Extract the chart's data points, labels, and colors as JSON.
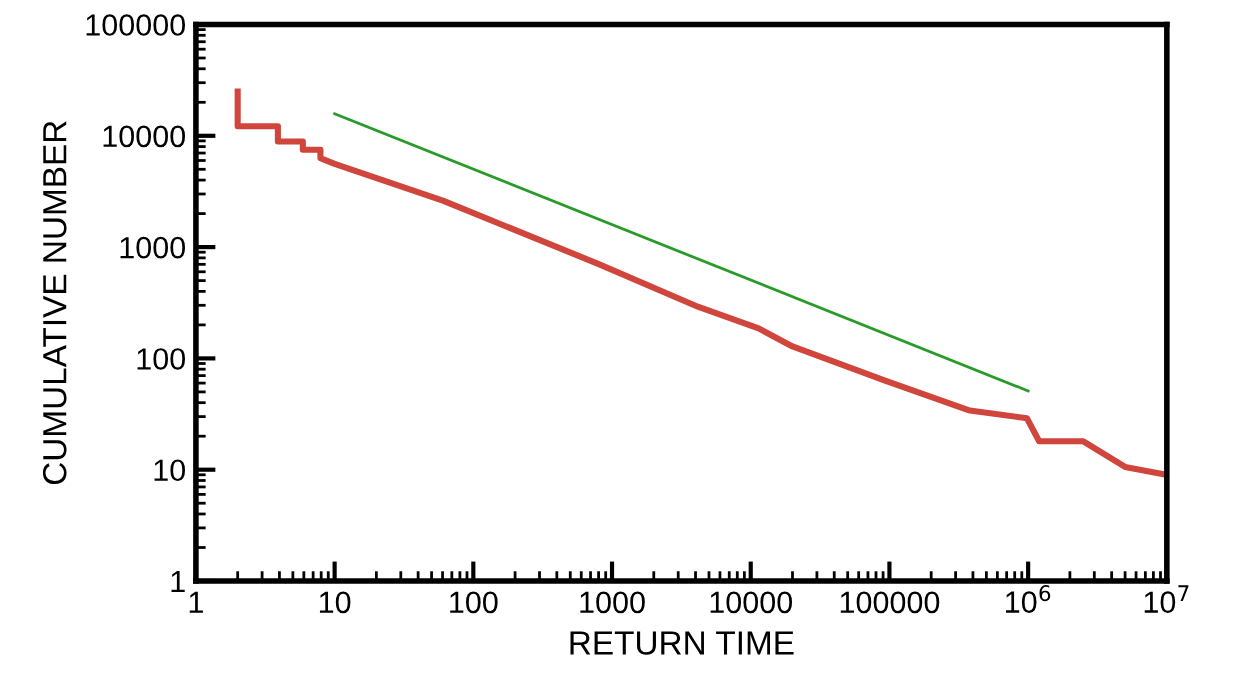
{
  "chart_data": {
    "type": "line",
    "xlabel": "RETURN TIME",
    "ylabel": "CUMULATIVE NUMBER",
    "log": "xy",
    "grid": false,
    "marker": "none",
    "line_style": "solid",
    "xlim": [
      1,
      10000000
    ],
    "ylim": [
      1,
      100000
    ],
    "xticks": [
      1,
      10,
      100,
      1000,
      10000,
      100000,
      {
        "value": 1000000,
        "label": "10$^{6}$"
      },
      {
        "value": 10000000,
        "label": "10$^{7}$"
      }
    ],
    "yticks": [
      1,
      10,
      100,
      1000,
      10000,
      100000
    ],
    "series": [
      {
        "color": "#d0463c",
        "x": [
          2,
          2,
          3.9,
          3.9,
          5.9,
          5.9,
          7.9,
          7.9,
          10,
          61,
          810,
          4200,
          11400,
          20000,
          93000,
          380000,
          980000,
          1200000,
          2500000,
          5000000,
          10000000
        ],
        "values": [
          25000,
          12200,
          12200,
          8900,
          8900,
          7500,
          7500,
          6300,
          5600,
          2600,
          700,
          290,
          186,
          128,
          63,
          34,
          29,
          18,
          18,
          10.6,
          9
        ]
      },
      {
        "color": "#2a9a2a",
        "x": [
          10,
          1000000
        ],
        "values": [
          15800,
          51
        ]
      }
    ]
  }
}
